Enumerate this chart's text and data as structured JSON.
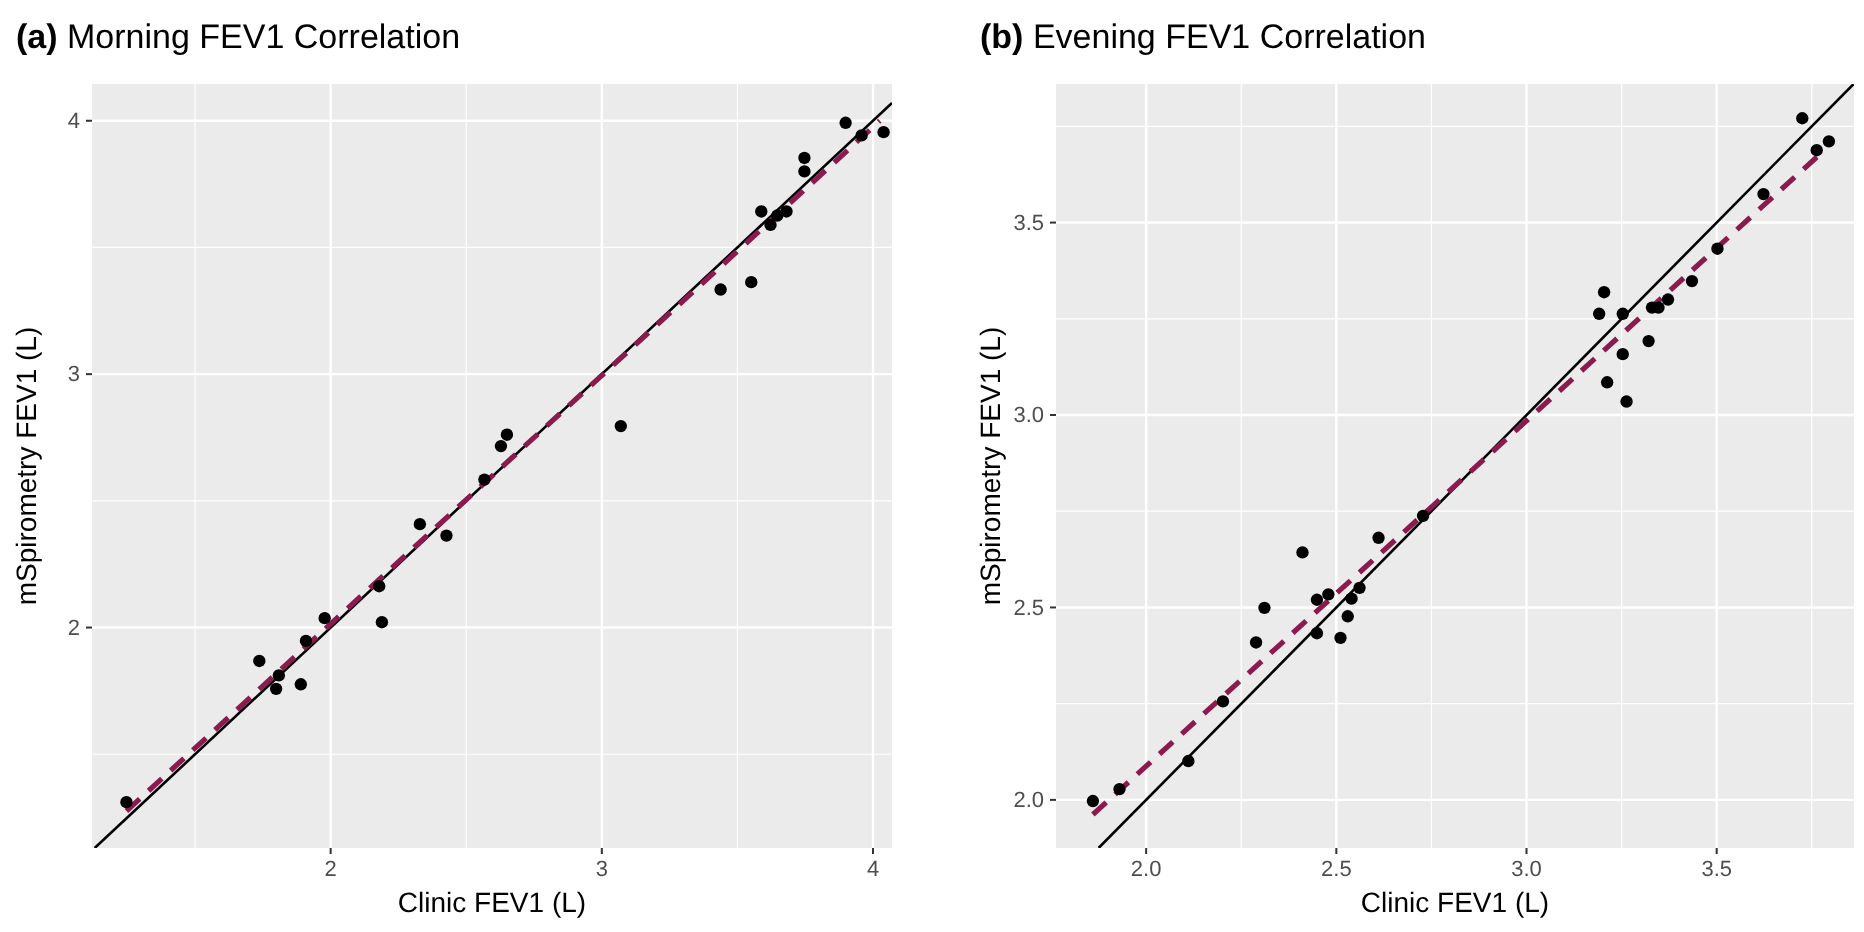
{
  "chart_data": [
    {
      "type": "scatter",
      "title": "(a) Morning FEV1 Correlation",
      "xlabel": "Clinic FEV1 (L)",
      "ylabel": "mSpirometry FEV1 (L)",
      "xlim": [
        1.12,
        4.07
      ],
      "ylim": [
        1.13,
        4.145
      ],
      "xticks": [
        2,
        3,
        4
      ],
      "yticks": [
        2,
        3,
        4
      ],
      "grid": true,
      "marker": "circle",
      "series": [
        {
          "color": "#000000",
          "x": [
            1.247,
            1.737,
            1.809,
            1.799,
            1.89,
            1.909,
            1.978,
            2.179,
            2.189,
            2.329,
            2.427,
            2.567,
            2.628,
            2.65,
            3.07,
            3.438,
            3.551,
            3.588,
            3.622,
            3.647,
            3.681,
            3.747,
            3.747,
            3.899,
            3.958,
            4.039
          ],
          "values": [
            1.311,
            1.868,
            1.811,
            1.758,
            1.776,
            1.947,
            2.037,
            2.163,
            2.021,
            2.408,
            2.363,
            2.584,
            2.716,
            2.761,
            2.795,
            3.334,
            3.363,
            3.642,
            3.589,
            3.626,
            3.642,
            3.853,
            3.8,
            3.992,
            3.942,
            3.955
          ]
        },
        {
          "type": "line",
          "color": "#000000",
          "line_style": "solid",
          "marker": "none",
          "x": [
            1.13,
            4.07
          ],
          "values": [
            1.13,
            4.07
          ]
        },
        {
          "type": "line",
          "color": "#8b1a4f",
          "line_style": "dashed",
          "marker": "none",
          "x": [
            1.247,
            4.025
          ],
          "values": [
            1.276,
            4.0
          ]
        }
      ]
    },
    {
      "type": "scatter",
      "title": "(b) Evening FEV1 Correlation",
      "xlabel": "Clinic FEV1 (L)",
      "ylabel": "mSpirometry FEV1 (L)",
      "xlim": [
        1.763,
        3.861
      ],
      "ylim": [
        1.875,
        3.86
      ],
      "xticks": [
        {
          "value": 2,
          "label": "2.0"
        },
        2.5,
        {
          "value": 3,
          "label": "3.0"
        },
        3.5
      ],
      "yticks": [
        {
          "value": 2,
          "label": "2.0"
        },
        2.5,
        {
          "value": 3,
          "label": "3.0"
        },
        3.5
      ],
      "grid": true,
      "marker": "circle",
      "series": [
        {
          "color": "#000000",
          "x": [
            1.86,
            1.93,
            2.111,
            2.202,
            2.289,
            2.311,
            2.411,
            2.449,
            2.449,
            2.479,
            2.511,
            2.53,
            2.54,
            2.561,
            2.611,
            2.728,
            3.191,
            3.204,
            3.253,
            3.253,
            3.212,
            3.263,
            3.321,
            3.33,
            3.347,
            3.372,
            3.435,
            3.502,
            3.623,
            3.725,
            3.763,
            3.795
          ],
          "values": [
            1.997,
            2.028,
            2.101,
            2.256,
            2.409,
            2.499,
            2.643,
            2.52,
            2.433,
            2.534,
            2.421,
            2.477,
            2.523,
            2.551,
            2.681,
            2.738,
            3.263,
            3.319,
            3.263,
            3.158,
            3.085,
            3.035,
            3.192,
            3.279,
            3.279,
            3.3,
            3.348,
            3.432,
            3.574,
            3.771,
            3.688,
            3.711
          ]
        },
        {
          "type": "line",
          "color": "#000000",
          "line_style": "solid",
          "marker": "none",
          "x": [
            1.875,
            3.86
          ],
          "values": [
            1.875,
            3.86
          ]
        },
        {
          "type": "line",
          "color": "#8b1a4f",
          "line_style": "dashed",
          "marker": "none",
          "x": [
            1.86,
            3.772
          ],
          "values": [
            1.962,
            3.678
          ]
        }
      ]
    }
  ]
}
